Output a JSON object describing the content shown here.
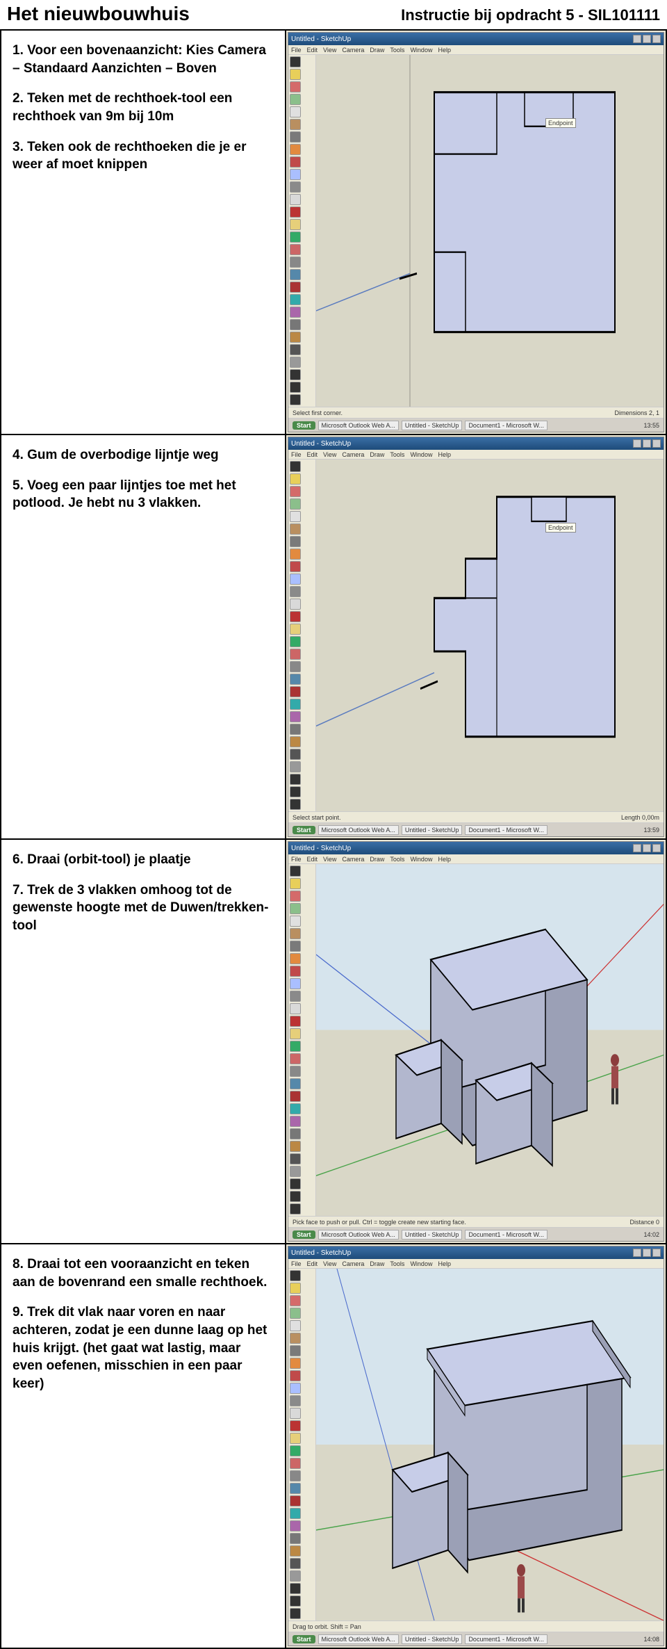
{
  "header": {
    "title": "Het nieuwbouwhuis",
    "subtitle": "Instructie bij opdracht 5 - SIL101111"
  },
  "rows": [
    {
      "texts": [
        "1. Voor een bovenaanzicht: Kies Camera – Standaard Aanzichten – Boven",
        "2. Teken met de rechthoek-tool een rechthoek van 9m bij 10m",
        "3. Teken ook de rechthoeken die je er weer af moet knippen"
      ],
      "screenshot_type": "top1",
      "window_title": "Untitled - SketchUp",
      "menu": [
        "File",
        "Edit",
        "View",
        "Camera",
        "Draw",
        "Tools",
        "Window",
        "Help"
      ],
      "status_left": "Select first corner.",
      "status_right": "Dimensions 2, 1",
      "taskbar_items": [
        "Microsoft Outlook Web A...",
        "Untitled - SketchUp",
        "Document1 - Microsoft W..."
      ],
      "taskbar_time": "13:55",
      "endpoint": "Endpoint",
      "canvas_bg": "#d9d7c7",
      "shape_fill": "#c7cde8",
      "shape_stroke": "#000000",
      "guide_color": "#5a7bbf"
    },
    {
      "texts": [
        "4. Gum de overbodige lijntje weg",
        "5. Voeg een paar lijntjes toe met het potlood. Je hebt nu 3 vlakken."
      ],
      "screenshot_type": "top2",
      "window_title": "Untitled - SketchUp",
      "menu": [
        "File",
        "Edit",
        "View",
        "Camera",
        "Draw",
        "Tools",
        "Window",
        "Help"
      ],
      "status_left": "Select start point.",
      "status_right": "Length 0,00m",
      "taskbar_items": [
        "Microsoft Outlook Web A...",
        "Untitled - SketchUp",
        "Document1 - Microsoft W..."
      ],
      "taskbar_time": "13:59",
      "endpoint": "Endpoint",
      "canvas_bg": "#d9d7c7",
      "shape_fill": "#c7cde8",
      "shape_stroke": "#000000",
      "guide_color": "#5a7bbf"
    },
    {
      "texts": [
        "6. Draai (orbit-tool) je plaatje",
        "7. Trek de 3 vlakken omhoog tot de gewenste hoogte met de Duwen/trekken-tool"
      ],
      "screenshot_type": "iso3d_1",
      "window_title": "Untitled - SketchUp",
      "menu": [
        "File",
        "Edit",
        "View",
        "Camera",
        "Draw",
        "Tools",
        "Window",
        "Help"
      ],
      "status_left": "Pick face to push or pull. Ctrl = toggle create new starting face.",
      "status_right": "Distance 0",
      "taskbar_items": [
        "Microsoft Outlook Web A...",
        "Untitled - SketchUp",
        "Document1 - Microsoft W..."
      ],
      "taskbar_time": "14:02",
      "canvas_bg": "#d9d7c7",
      "sky_color": "#d6e4ed",
      "ground_color": "#d9d7c7",
      "face_top": "#c7cde8",
      "face_side": "#9ba0b6",
      "face_front": "#b2b7ce",
      "stroke": "#000000",
      "axis_red": "#cc3333",
      "axis_green": "#4aa34a",
      "axis_blue": "#4a6acc"
    },
    {
      "texts": [
        "8. Draai tot een vooraanzicht en teken aan de bovenrand een smalle rechthoek.",
        "9. Trek dit vlak naar voren en naar achteren, zodat je een dunne laag op het huis krijgt. (het gaat wat lastig, maar even oefenen, misschien in een paar keer)"
      ],
      "screenshot_type": "iso3d_2",
      "window_title": "Untitled - SketchUp",
      "menu": [
        "File",
        "Edit",
        "View",
        "Camera",
        "Draw",
        "Tools",
        "Window",
        "Help"
      ],
      "status_left": "Drag to orbit. Shift = Pan",
      "status_right": "",
      "taskbar_items": [
        "Microsoft Outlook Web A...",
        "Untitled - SketchUp",
        "Document1 - Microsoft W..."
      ],
      "taskbar_time": "14:08",
      "canvas_bg": "#d9d7c7",
      "sky_color": "#d6e4ed",
      "ground_color": "#d9d7c7",
      "face_top": "#c7cde8",
      "face_side": "#9ba0b6",
      "face_front": "#b2b7ce",
      "stroke": "#000000",
      "axis_red": "#cc3333",
      "axis_green": "#4aa34a",
      "axis_blue": "#4a6acc"
    }
  ],
  "toolbar_colors": [
    "#333333",
    "#e8cf5a",
    "#d46a6a",
    "#8bbf8b",
    "#e0e0e0",
    "#b98f60",
    "#7a7a7a",
    "#e28a3f",
    "#c04a4a",
    "#aabfff",
    "#8a8a8a",
    "#d9d9d9",
    "#b33",
    "#e6cf7a",
    "#3a6",
    "#c66",
    "#888",
    "#58a",
    "#a33",
    "#3aa",
    "#a6a",
    "#777",
    "#b84",
    "#555",
    "#999",
    "#333",
    "#333",
    "#333"
  ]
}
